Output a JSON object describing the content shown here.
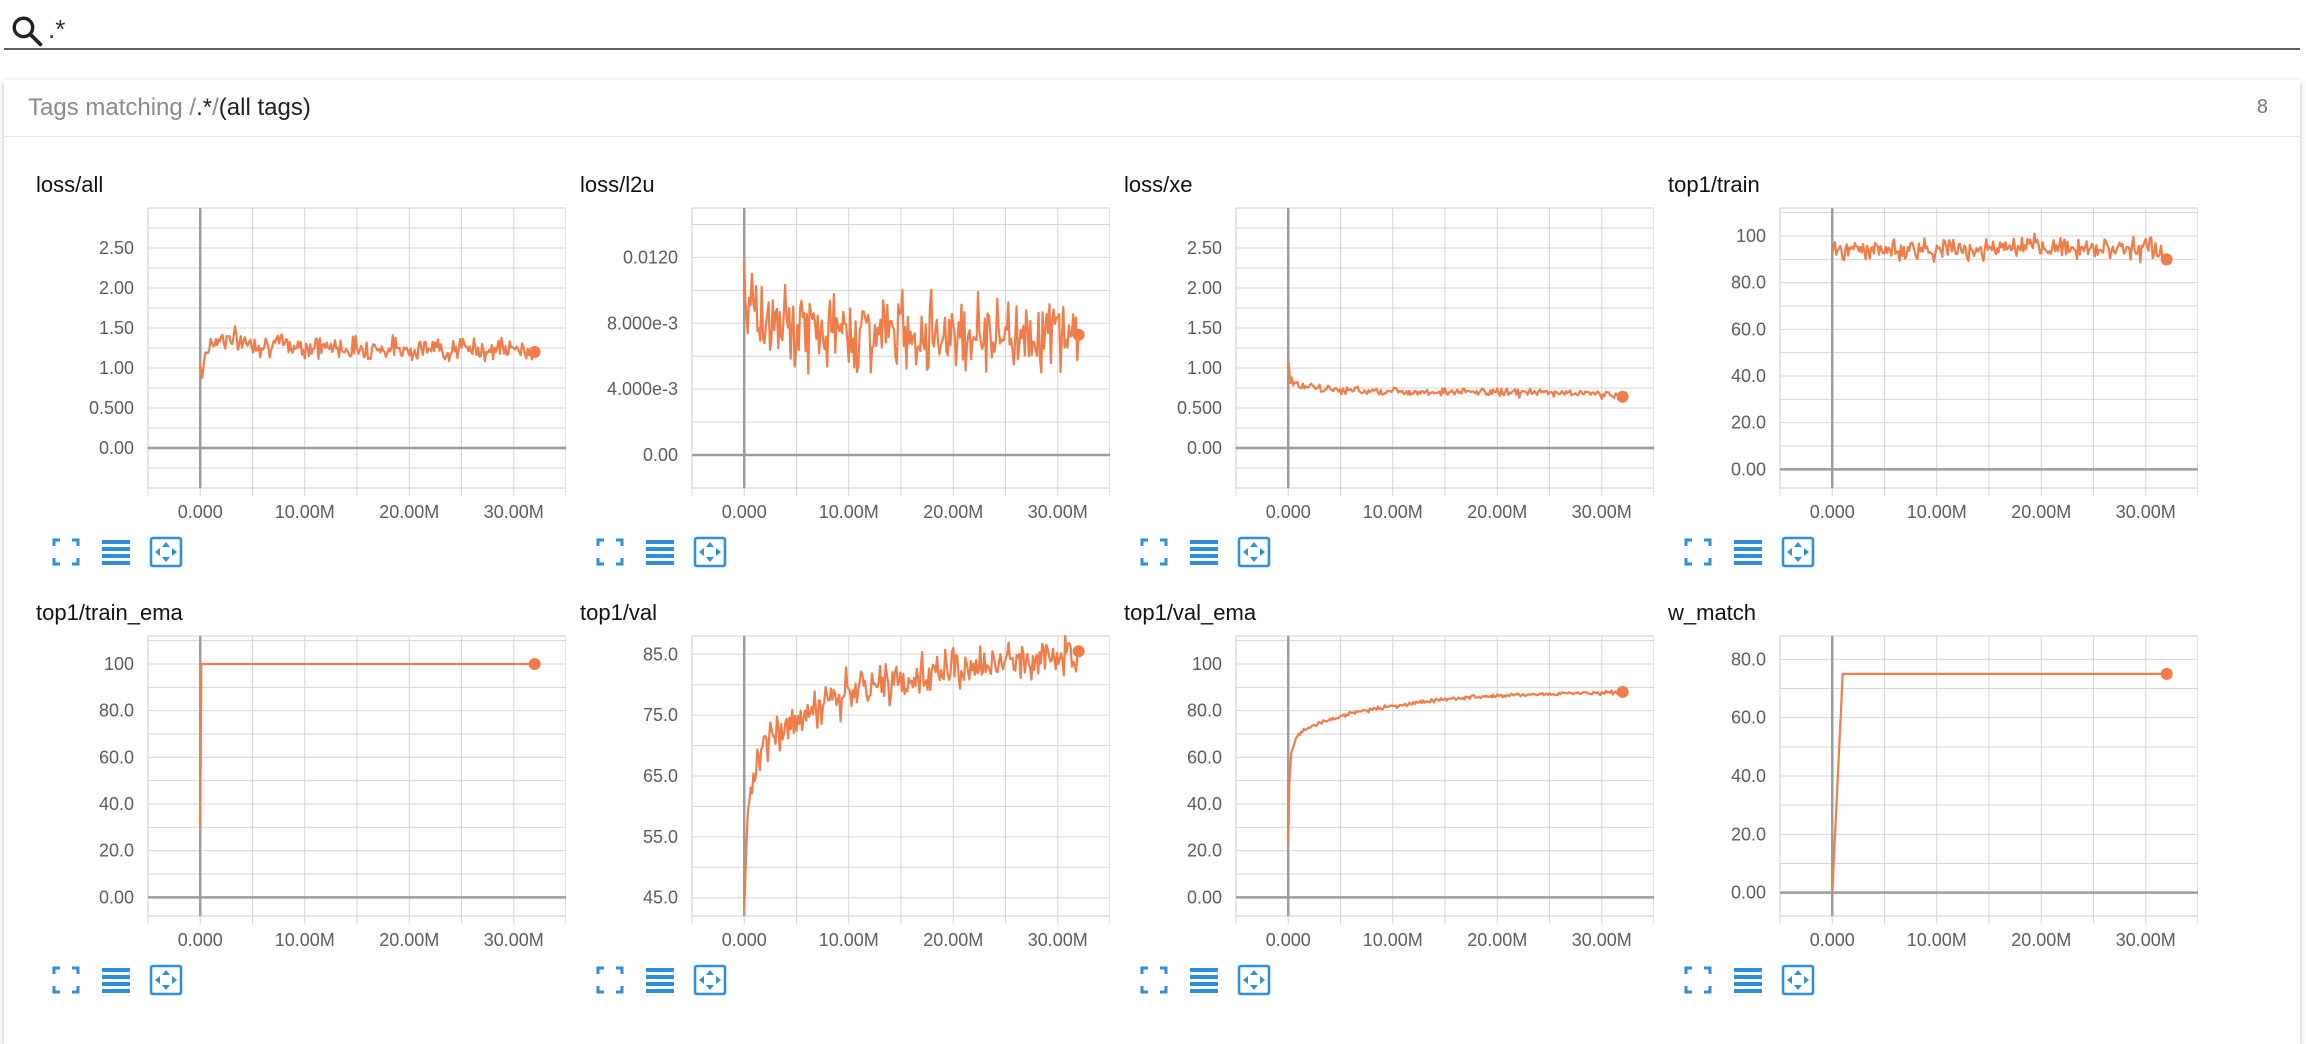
{
  "search": {
    "value": ".*",
    "placeholder": ""
  },
  "category": {
    "title_prefix": "Tags matching /",
    "title_regex": ".*",
    "title_middle": "/",
    "title_suffix": "(all tags)",
    "count": "8"
  },
  "colors": {
    "series": "#f07d4a",
    "accent": "#2f8fdc",
    "grid": "#d6d6d6",
    "axis": "#9c9c9c"
  },
  "icons": [
    "search-icon",
    "expand-icon",
    "data-toggle-icon",
    "fit-domain-icon"
  ],
  "chart_data": [
    {
      "tag": "loss/all",
      "type": "line",
      "ylim": [
        -0.5,
        3.0
      ],
      "yticks": [
        0,
        0.5,
        1,
        1.5,
        2,
        2.5
      ],
      "ytick_labels": [
        "0.00",
        "0.500",
        "1.00",
        "1.50",
        "2.00",
        "2.50"
      ],
      "x_ticks": [
        0,
        10000000,
        20000000,
        30000000
      ],
      "x_tick_labels": [
        "0.000",
        "10.00M",
        "20.00M",
        "30.00M"
      ],
      "xlim": [
        -5000000,
        35000000
      ],
      "series": [
        {
          "x": [
            0,
            200000,
            500000,
            1000000,
            2000000,
            4000000,
            6000000,
            10000000,
            15000000,
            20000000,
            25000000,
            30000000,
            32000000
          ],
          "y": [
            1.05,
            0.92,
            1.2,
            1.3,
            1.38,
            1.33,
            1.3,
            1.27,
            1.25,
            1.24,
            1.24,
            1.23,
            1.2
          ],
          "noise": 0.07
        }
      ]
    },
    {
      "tag": "loss/l2u",
      "type": "line",
      "ylim": [
        -0.002,
        0.015
      ],
      "yticks": [
        0,
        0.004,
        0.008,
        0.012
      ],
      "ytick_labels": [
        "0.00",
        "4.000e-3",
        "8.000e-3",
        "0.0120"
      ],
      "x_ticks": [
        0,
        10000000,
        20000000,
        30000000
      ],
      "x_tick_labels": [
        "0.000",
        "10.00M",
        "20.00M",
        "30.00M"
      ],
      "xlim": [
        -5000000,
        35000000
      ],
      "series": [
        {
          "x": [
            0,
            200000,
            1000000,
            3000000,
            6000000,
            10000000,
            15000000,
            20000000,
            25000000,
            30000000,
            32000000
          ],
          "y": [
            0.0118,
            0.0098,
            0.0085,
            0.0078,
            0.0076,
            0.0075,
            0.0075,
            0.0075,
            0.0074,
            0.0074,
            0.0073
          ],
          "noise": 0.0011
        }
      ]
    },
    {
      "tag": "loss/xe",
      "type": "line",
      "ylim": [
        -0.5,
        3.0
      ],
      "yticks": [
        0,
        0.5,
        1,
        1.5,
        2,
        2.5
      ],
      "ytick_labels": [
        "0.00",
        "0.500",
        "1.00",
        "1.50",
        "2.00",
        "2.50"
      ],
      "x_ticks": [
        0,
        10000000,
        20000000,
        30000000
      ],
      "x_tick_labels": [
        "0.000",
        "10.00M",
        "20.00M",
        "30.00M"
      ],
      "xlim": [
        -5000000,
        35000000
      ],
      "series": [
        {
          "x": [
            0,
            200000,
            1000000,
            3000000,
            6000000,
            10000000,
            15000000,
            20000000,
            25000000,
            30000000,
            32000000
          ],
          "y": [
            1.1,
            0.85,
            0.78,
            0.74,
            0.72,
            0.71,
            0.7,
            0.7,
            0.69,
            0.68,
            0.64
          ],
          "noise": 0.025
        }
      ]
    },
    {
      "tag": "top1/train",
      "type": "line",
      "ylim": [
        -8,
        112
      ],
      "yticks": [
        0,
        20,
        40,
        60,
        80,
        100
      ],
      "ytick_labels": [
        "0.00",
        "20.0",
        "40.0",
        "60.0",
        "80.0",
        "100"
      ],
      "x_ticks": [
        0,
        10000000,
        20000000,
        30000000
      ],
      "x_tick_labels": [
        "0.000",
        "10.00M",
        "20.00M",
        "30.00M"
      ],
      "xlim": [
        -5000000,
        35000000
      ],
      "series": [
        {
          "x": [
            0,
            500000,
            5000000,
            10000000,
            15000000,
            20000000,
            25000000,
            30000000,
            32000000
          ],
          "y": [
            93,
            94,
            94,
            94.5,
            94.5,
            95,
            95,
            95,
            90
          ],
          "noise": 2.3
        }
      ]
    },
    {
      "tag": "top1/train_ema",
      "type": "line",
      "ylim": [
        -8,
        112
      ],
      "yticks": [
        0,
        20,
        40,
        60,
        80,
        100
      ],
      "ytick_labels": [
        "0.00",
        "20.0",
        "40.0",
        "60.0",
        "80.0",
        "100"
      ],
      "x_ticks": [
        0,
        10000000,
        20000000,
        30000000
      ],
      "x_tick_labels": [
        "0.000",
        "10.00M",
        "20.00M",
        "30.00M"
      ],
      "xlim": [
        -5000000,
        35000000
      ],
      "series": [
        {
          "x": [
            0,
            100000,
            200000,
            32000000
          ],
          "y": [
            30,
            100,
            100,
            100
          ],
          "noise": 0
        }
      ]
    },
    {
      "tag": "top1/val",
      "type": "line",
      "ylim": [
        42,
        88
      ],
      "yticks": [
        45,
        55,
        65,
        75,
        85
      ],
      "ytick_labels": [
        "45.0",
        "55.0",
        "65.0",
        "75.0",
        "85.0"
      ],
      "x_ticks": [
        0,
        10000000,
        20000000,
        30000000
      ],
      "x_tick_labels": [
        "0.000",
        "10.00M",
        "20.00M",
        "30.00M"
      ],
      "xlim": [
        -5000000,
        35000000
      ],
      "series": [
        {
          "x": [
            0,
            200000,
            500000,
            1000000,
            2000000,
            3000000,
            5000000,
            7000000,
            10000000,
            13000000,
            16000000,
            20000000,
            24000000,
            28000000,
            32000000
          ],
          "y": [
            43,
            55,
            62,
            66,
            70,
            72,
            74.5,
            76.5,
            78.5,
            80,
            81,
            82.5,
            83.3,
            84,
            85.5
          ],
          "noise": 1.6
        }
      ]
    },
    {
      "tag": "top1/val_ema",
      "type": "line",
      "ylim": [
        -8,
        112
      ],
      "yticks": [
        0,
        20,
        40,
        60,
        80,
        100
      ],
      "ytick_labels": [
        "0.00",
        "20.0",
        "40.0",
        "60.0",
        "80.0",
        "100"
      ],
      "x_ticks": [
        0,
        10000000,
        20000000,
        30000000
      ],
      "x_tick_labels": [
        "0.000",
        "10.00M",
        "20.00M",
        "30.00M"
      ],
      "xlim": [
        -5000000,
        35000000
      ],
      "series": [
        {
          "x": [
            0,
            100000,
            300000,
            600000,
            1000000,
            2000000,
            4000000,
            6000000,
            10000000,
            15000000,
            20000000,
            25000000,
            30000000,
            32000000
          ],
          "y": [
            23,
            50,
            62,
            67,
            70,
            73,
            76,
            79,
            82,
            85,
            86.5,
            87.2,
            87.7,
            88
          ],
          "noise": 0.45
        }
      ]
    },
    {
      "tag": "w_match",
      "type": "line",
      "ylim": [
        -8,
        88
      ],
      "yticks": [
        0,
        20,
        40,
        60,
        80
      ],
      "ytick_labels": [
        "0.00",
        "20.0",
        "40.0",
        "60.0",
        "80.0"
      ],
      "x_ticks": [
        0,
        10000000,
        20000000,
        30000000
      ],
      "x_tick_labels": [
        "0.000",
        "10.00M",
        "20.00M",
        "30.00M"
      ],
      "xlim": [
        -5000000,
        35000000
      ],
      "series": [
        {
          "x": [
            0,
            1000000,
            32000000
          ],
          "y": [
            0,
            75,
            75
          ],
          "noise": 0
        }
      ]
    }
  ]
}
